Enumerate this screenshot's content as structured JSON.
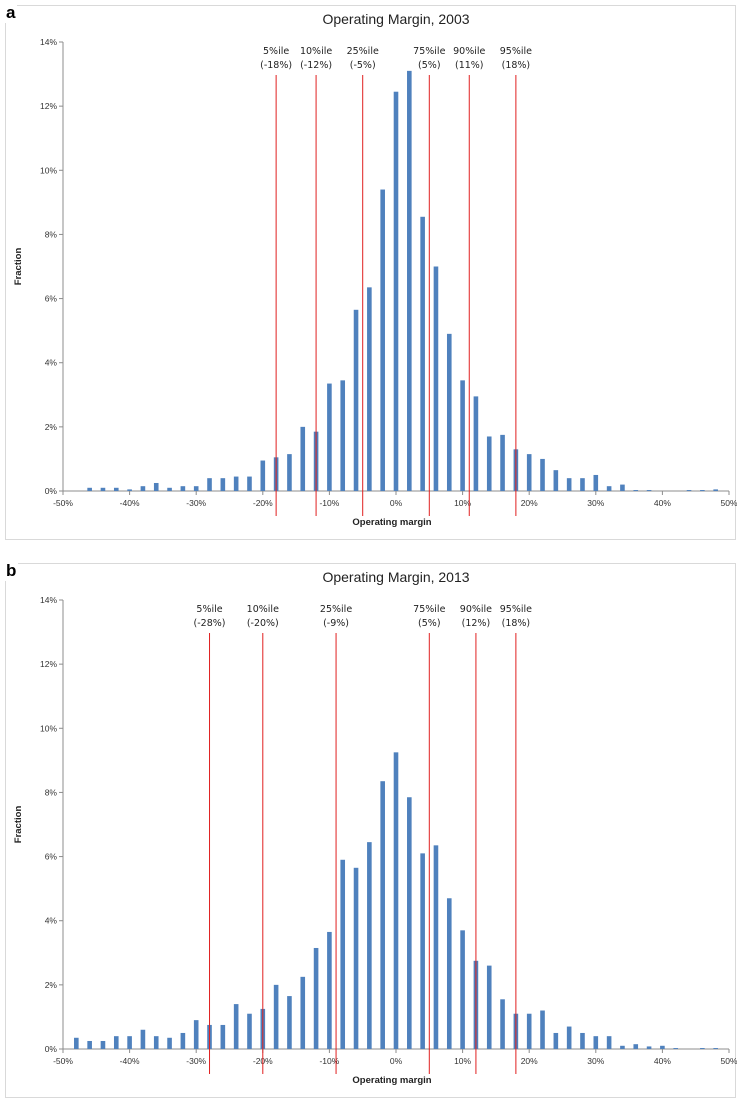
{
  "chart_data": [
    {
      "panel": "a",
      "type": "bar",
      "title": "Operating Margin, 2003",
      "xlabel": "Operating margin",
      "ylabel": "Fraction",
      "xlim": [
        -50,
        50
      ],
      "ylim": [
        0,
        14
      ],
      "x_ticks": [
        -50,
        -40,
        -30,
        -20,
        -10,
        0,
        10,
        20,
        30,
        40,
        50
      ],
      "x_tick_labels": [
        "-50%",
        "-40%",
        "-30%",
        "-20%",
        "-10%",
        "0%",
        "10%",
        "20%",
        "30%",
        "40%",
        "50%"
      ],
      "y_ticks": [
        0,
        2,
        4,
        6,
        8,
        10,
        12,
        14
      ],
      "y_tick_labels": [
        "0%",
        "2%",
        "4%",
        "6%",
        "8%",
        "10%",
        "12%",
        "14%"
      ],
      "bar_color": "#4f81bd",
      "line_color": "#e02020",
      "x": [
        -46,
        -44,
        -42,
        -40,
        -38,
        -36,
        -34,
        -32,
        -30,
        -28,
        -26,
        -24,
        -22,
        -20,
        -18,
        -16,
        -14,
        -12,
        -10,
        -8,
        -6,
        -4,
        -2,
        0,
        2,
        4,
        6,
        8,
        10,
        12,
        14,
        16,
        18,
        20,
        22,
        24,
        26,
        28,
        30,
        32,
        34,
        36,
        38,
        40,
        42,
        44,
        46,
        48
      ],
      "values": [
        0.1,
        0.1,
        0.1,
        0.05,
        0.15,
        0.25,
        0.1,
        0.15,
        0.15,
        0.4,
        0.4,
        0.45,
        0.45,
        0.95,
        1.05,
        1.15,
        2.0,
        1.85,
        3.35,
        3.45,
        5.65,
        6.35,
        9.4,
        12.45,
        13.1,
        8.55,
        7.0,
        4.9,
        3.45,
        2.95,
        1.7,
        1.75,
        1.3,
        1.15,
        1.0,
        0.65,
        0.4,
        0.4,
        0.5,
        0.15,
        0.2,
        0.03,
        0.03,
        0.0,
        0.0,
        0.03,
        0.03,
        0.05
      ],
      "percentiles": [
        {
          "label": "5%ile",
          "value_label": "(-18%)",
          "x": -18
        },
        {
          "label": "10%ile",
          "value_label": "(-12%)",
          "x": -12
        },
        {
          "label": "25%ile",
          "value_label": "(-5%)",
          "x": -5
        },
        {
          "label": "75%ile",
          "value_label": "(5%)",
          "x": 5
        },
        {
          "label": "90%ile",
          "value_label": "(11%)",
          "x": 11
        },
        {
          "label": "95%ile",
          "value_label": "(18%)",
          "x": 18
        }
      ]
    },
    {
      "panel": "b",
      "type": "bar",
      "title": "Operating Margin, 2013",
      "xlabel": "Operating margin",
      "ylabel": "Fraction",
      "xlim": [
        -50,
        50
      ],
      "ylim": [
        0,
        14
      ],
      "x_ticks": [
        -50,
        -40,
        -30,
        -20,
        -10,
        0,
        10,
        20,
        30,
        40,
        50
      ],
      "x_tick_labels": [
        "-50%",
        "-40%",
        "-30%",
        "-20%",
        "-10%",
        "0%",
        "10%",
        "20%",
        "30%",
        "40%",
        "50%"
      ],
      "y_ticks": [
        0,
        2,
        4,
        6,
        8,
        10,
        12,
        14
      ],
      "y_tick_labels": [
        "0%",
        "2%",
        "4%",
        "6%",
        "8%",
        "10%",
        "12%",
        "14%"
      ],
      "bar_color": "#4f81bd",
      "line_color": "#e02020",
      "x": [
        -48,
        -46,
        -44,
        -42,
        -40,
        -38,
        -36,
        -34,
        -32,
        -30,
        -28,
        -26,
        -24,
        -22,
        -20,
        -18,
        -16,
        -14,
        -12,
        -10,
        -8,
        -6,
        -4,
        -2,
        0,
        2,
        4,
        6,
        8,
        10,
        12,
        14,
        16,
        18,
        20,
        22,
        24,
        26,
        28,
        30,
        32,
        34,
        36,
        38,
        40,
        42,
        44,
        46,
        48
      ],
      "values": [
        0.35,
        0.25,
        0.25,
        0.4,
        0.4,
        0.6,
        0.4,
        0.35,
        0.5,
        0.9,
        0.75,
        0.75,
        1.4,
        1.1,
        1.25,
        2.0,
        1.65,
        2.25,
        3.15,
        3.65,
        5.9,
        5.65,
        6.45,
        8.35,
        9.25,
        7.85,
        6.1,
        6.35,
        4.7,
        3.7,
        2.75,
        2.6,
        1.55,
        1.1,
        1.1,
        1.2,
        0.5,
        0.7,
        0.5,
        0.4,
        0.4,
        0.1,
        0.15,
        0.08,
        0.1,
        0.03,
        0.0,
        0.03,
        0.03
      ],
      "percentiles": [
        {
          "label": "5%ile",
          "value_label": "(-28%)",
          "x": -28
        },
        {
          "label": "10%ile",
          "value_label": "(-20%)",
          "x": -20
        },
        {
          "label": "25%ile",
          "value_label": "(-9%)",
          "x": -9
        },
        {
          "label": "75%ile",
          "value_label": "(5%)",
          "x": 5
        },
        {
          "label": "90%ile",
          "value_label": "(12%)",
          "x": 12
        },
        {
          "label": "95%ile",
          "value_label": "(18%)",
          "x": 18
        }
      ]
    }
  ],
  "panel_labels": {
    "a": "a",
    "b": "b"
  }
}
